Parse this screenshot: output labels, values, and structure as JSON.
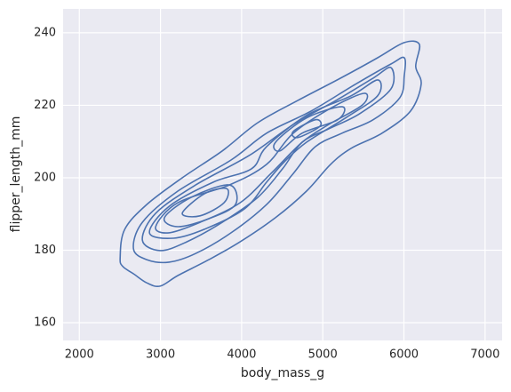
{
  "chart_data": {
    "type": "contour",
    "xlabel": "body_mass_g",
    "ylabel": "flipper_length_mm",
    "xlim": [
      1800,
      7210
    ],
    "ylim": [
      155.1,
      246.6
    ],
    "xticks": [
      2000,
      3000,
      4000,
      5000,
      6000,
      7000
    ],
    "yticks": [
      160,
      180,
      200,
      220,
      240
    ],
    "grid": true,
    "color": "#4c72b0",
    "contours": [
      {
        "x": [
          2503,
          2558,
          2831,
          3269,
          3761,
          4199,
          4691,
          5238,
          5676,
          6004,
          6190,
          6146,
          6212,
          6081,
          5731,
          5348,
          5096,
          4800,
          4418,
          3980,
          3597,
          3214,
          2996,
          2831,
          2667,
          2536
        ],
        "y": [
          177.9,
          185.7,
          192.6,
          200.0,
          207.4,
          215.2,
          221.3,
          227.7,
          233.1,
          237.3,
          236.8,
          230.7,
          225.8,
          218.4,
          212.3,
          208.1,
          203.7,
          196.3,
          189.0,
          182.3,
          177.4,
          173.0,
          170.1,
          171.0,
          173.5,
          175.5
        ]
      },
      {
        "x": [
          2667,
          2777,
          3214,
          3870,
          4308,
          4855,
          5402,
          5840,
          6004,
          6004,
          5949,
          5621,
          5238,
          4910,
          4637,
          4308,
          3870,
          3433,
          3105,
          2831
        ],
        "y": [
          180.4,
          187.7,
          196.3,
          204.9,
          212.3,
          218.4,
          225.8,
          231.4,
          233.1,
          228.2,
          222.1,
          216.0,
          212.3,
          208.6,
          201.2,
          192.6,
          184.8,
          179.1,
          176.7,
          177.4
        ]
      },
      {
        "x": [
          2777,
          2941,
          3433,
          4090,
          4637,
          5184,
          5621,
          5840,
          5840,
          5457,
          5074,
          4746,
          4505,
          4199,
          3761,
          3323,
          2996
        ],
        "y": [
          182.8,
          190.2,
          198.0,
          206.1,
          214.7,
          221.6,
          227.5,
          230.4,
          224.5,
          217.7,
          213.5,
          209.8,
          202.5,
          194.6,
          187.7,
          182.3,
          179.9
        ]
      },
      {
        "x": [
          2864,
          3105,
          3652,
          4123,
          4308,
          4800,
          5348,
          5676,
          5676,
          5293,
          4800,
          4527,
          4308,
          4035,
          3542,
          3159
        ],
        "y": [
          184.8,
          192.1,
          198.8,
          202.5,
          208.6,
          217.2,
          222.6,
          227.0,
          222.6,
          216.7,
          209.8,
          204.4,
          198.8,
          191.4,
          185.8,
          183.3
        ]
      },
      {
        "x": [
          2941,
          3214,
          3848,
          4308,
          4637,
          5130,
          5512,
          5490,
          5074,
          4746,
          4363,
          3980,
          3488,
          3105
        ],
        "y": [
          186.5,
          193.1,
          198.0,
          203.7,
          212.3,
          219.6,
          223.3,
          220.1,
          214.7,
          209.8,
          201.2,
          193.1,
          187.7,
          184.8
        ]
      },
      {
        "x": [
          3050,
          3378,
          3848,
          3925,
          3597,
          3214
        ],
        "y": [
          189.0,
          194.6,
          198.0,
          192.6,
          188.7,
          186.5
        ]
      },
      {
        "x": [
          3269,
          3542,
          3816,
          3783,
          3488
        ],
        "y": [
          190.2,
          195.6,
          197.0,
          193.1,
          189.5
        ]
      },
      {
        "x": [
          4418,
          4800,
          5238,
          5184,
          4746,
          4472
        ],
        "y": [
          209.8,
          216.5,
          219.6,
          216.0,
          212.3,
          207.4
        ]
      },
      {
        "x": [
          4637,
          4910,
          4965,
          4691
        ],
        "y": [
          212.8,
          216.0,
          214.2,
          211.1
        ]
      }
    ]
  }
}
